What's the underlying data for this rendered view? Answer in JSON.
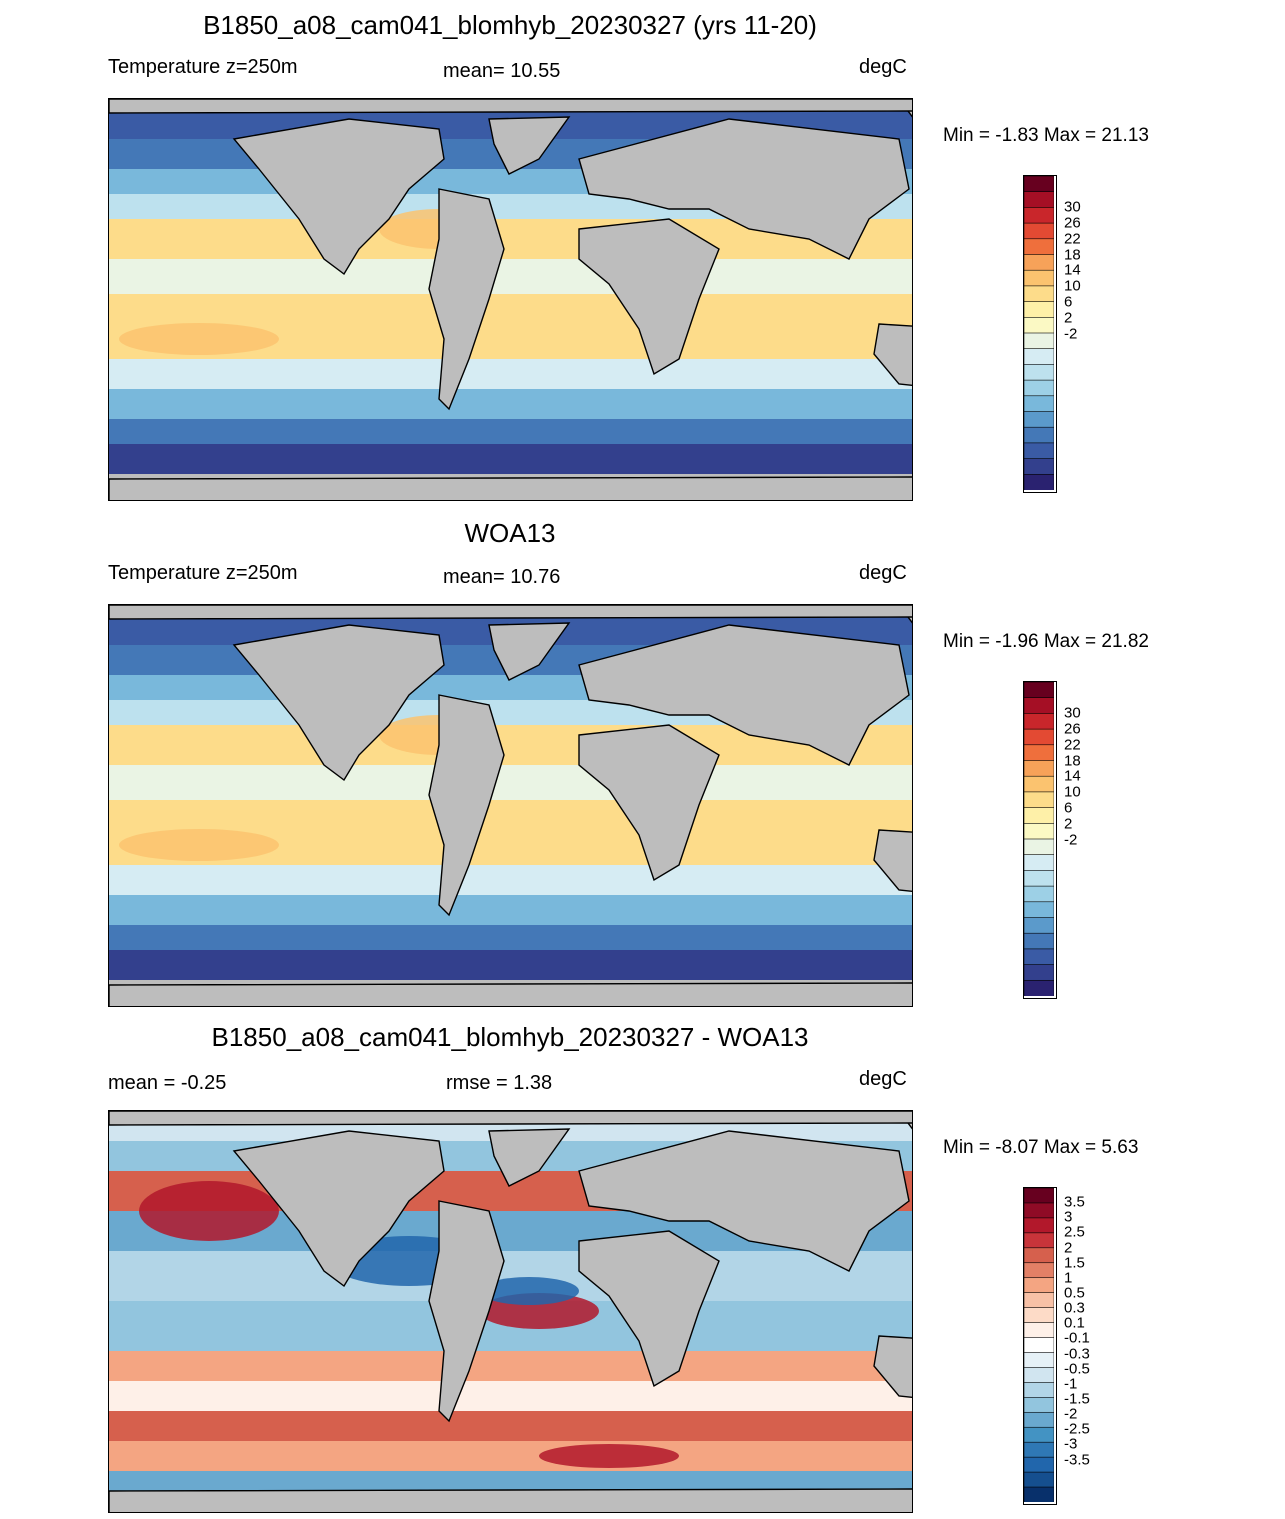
{
  "panels": [
    {
      "title": "B1850_a08_cam041_blomhyb_20230327 (yrs 11-20)",
      "left_label": "Temperature z=250m",
      "center_label": "mean=  10.55",
      "units": "degC",
      "minmax": "Min =  -1.83 Max =  21.13",
      "kind": "field"
    },
    {
      "title": "WOA13",
      "left_label": "Temperature z=250m",
      "center_label": "mean=  10.76",
      "units": "degC",
      "minmax": "Min =  -1.96 Max =  21.82",
      "kind": "field"
    },
    {
      "title": "B1850_a08_cam041_blomhyb_20230327 - WOA13",
      "left_label": "mean =  -0.25",
      "center_label": "rmse =   1.38",
      "units": "degC",
      "minmax": "Min =  -8.07 Max =   5.63",
      "kind": "diff"
    }
  ],
  "colorbars": {
    "field": {
      "labels": [
        "30",
        "26",
        "22",
        "18",
        "14",
        "10",
        "6",
        "2",
        "-2"
      ],
      "colors": [
        "#67001f",
        "#a50f25",
        "#c9262b",
        "#e34a33",
        "#ef6f3c",
        "#f7a259",
        "#fbc36f",
        "#fddc8a",
        "#fef0a8",
        "#fbf9c4",
        "#eaf4e4",
        "#d6ecf3",
        "#bde1ee",
        "#9dd0e6",
        "#79b8db",
        "#5b9acb",
        "#4478b7",
        "#3a5ba5",
        "#33408d",
        "#2a2270"
      ]
    },
    "diff": {
      "labels": [
        "3.5",
        "3",
        "2.5",
        "2",
        "1.5",
        "1",
        "0.5",
        "0.3",
        "0.1",
        "-0.1",
        "-0.3",
        "-0.5",
        "-1",
        "-1.5",
        "-2",
        "-2.5",
        "-3",
        "-3.5"
      ],
      "colors": [
        "#67001f",
        "#8f0b26",
        "#b2182b",
        "#c8343a",
        "#d6604d",
        "#e38066",
        "#f4a582",
        "#f8c1a6",
        "#fddbc7",
        "#fef0e8",
        "#ffffff",
        "#e6f1f7",
        "#d1e5f0",
        "#b2d5e7",
        "#92c5de",
        "#6aa9cf",
        "#4393c3",
        "#2f78b5",
        "#2166ac",
        "#154f8f",
        "#08306b"
      ]
    }
  },
  "chart_data": [
    {
      "type": "heatmap",
      "title": "B1850_a08_cam041_blomhyb_20230327 (yrs 11-20)",
      "variable": "Temperature z=250m",
      "units": "degC",
      "mean": 10.55,
      "min": -1.83,
      "max": 21.13,
      "colorbar_ticks": [
        30,
        26,
        22,
        18,
        14,
        10,
        6,
        2,
        -2
      ],
      "contour_levels": [
        -2,
        0,
        2,
        4,
        6,
        8,
        10,
        12,
        14,
        16,
        18,
        20,
        22,
        24,
        26,
        28,
        30
      ]
    },
    {
      "type": "heatmap",
      "title": "WOA13",
      "variable": "Temperature z=250m",
      "units": "degC",
      "mean": 10.76,
      "min": -1.96,
      "max": 21.82,
      "colorbar_ticks": [
        30,
        26,
        22,
        18,
        14,
        10,
        6,
        2,
        -2
      ],
      "contour_levels": [
        -2,
        0,
        2,
        4,
        6,
        8,
        10,
        12,
        14,
        16,
        18,
        20,
        22,
        24,
        26,
        28,
        30
      ]
    },
    {
      "type": "heatmap",
      "title": "B1850_a08_cam041_blomhyb_20230327 - WOA13",
      "units": "degC",
      "mean": -0.25,
      "rmse": 1.38,
      "min": -8.07,
      "max": 5.63,
      "colorbar_ticks": [
        3.5,
        3,
        2.5,
        2,
        1.5,
        1,
        0.5,
        0.3,
        0.1,
        -0.1,
        -0.3,
        -0.5,
        -1,
        -1.5,
        -2,
        -2.5,
        -3,
        -3.5
      ]
    }
  ]
}
